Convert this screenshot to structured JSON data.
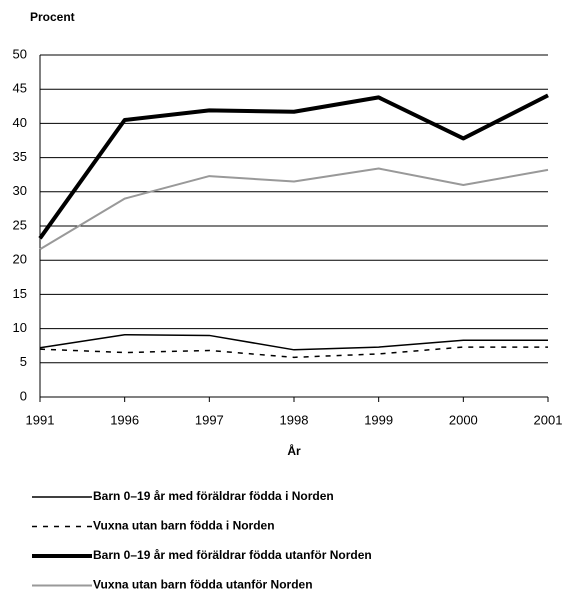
{
  "chart_data": {
    "type": "line",
    "ylabel": "Procent",
    "xlabel": "År",
    "categories": [
      "1991",
      "1996",
      "1997",
      "1998",
      "1999",
      "2000",
      "2001"
    ],
    "ylim": [
      0,
      50
    ],
    "yticks": [
      0,
      5,
      10,
      15,
      20,
      25,
      30,
      35,
      40,
      45,
      50
    ],
    "grid": true,
    "legend": "bottom",
    "series": [
      {
        "name": "Barn 0–19 år med föräldrar födda i Norden",
        "color": "#000000",
        "line_width": 1.5,
        "dashed": false,
        "values": [
          7.2,
          9.1,
          9.0,
          6.9,
          7.3,
          8.3,
          8.3
        ]
      },
      {
        "name": "Vuxna utan barn födda i Norden",
        "color": "#000000",
        "line_width": 1.5,
        "dashed": true,
        "values": [
          7.0,
          6.5,
          6.8,
          5.8,
          6.3,
          7.3,
          7.3
        ]
      },
      {
        "name": "Barn 0–19 år med föräldrar födda utanför Norden",
        "color": "#000000",
        "line_width": 4,
        "dashed": false,
        "values": [
          23.2,
          40.5,
          41.9,
          41.7,
          43.8,
          37.8,
          44.1
        ]
      },
      {
        "name": "Vuxna utan barn födda utanför Norden",
        "color": "#999999",
        "line_width": 2,
        "dashed": false,
        "values": [
          21.6,
          29.0,
          32.3,
          31.5,
          33.4,
          31.0,
          33.2
        ]
      }
    ]
  }
}
